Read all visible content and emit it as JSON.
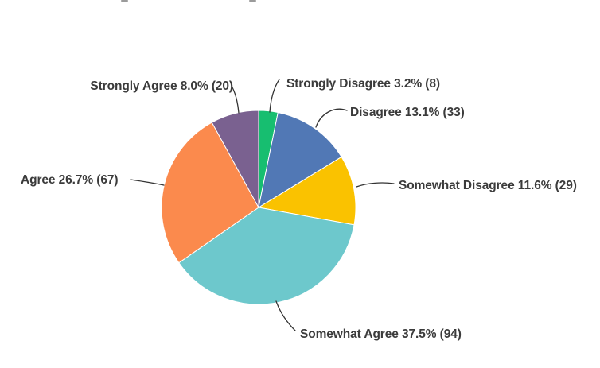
{
  "chart_data": {
    "type": "pie",
    "title": "",
    "direction": "clockwise",
    "start_angle": "12-oclock",
    "label_style": "callout-with-leader-lines",
    "legend_position": "none",
    "background": "#ffffff",
    "label_color": "#3b3b3b",
    "leader_line_color": "#333333",
    "slice_separator_color": "#ffffff",
    "categories": [
      "Strongly Disagree",
      "Disagree",
      "Somewhat Disagree",
      "Somewhat Agree",
      "Agree",
      "Strongly Agree"
    ],
    "values": [
      3.2,
      13.1,
      11.6,
      37.5,
      26.7,
      8.0
    ],
    "counts": [
      8,
      33,
      29,
      94,
      67,
      20
    ],
    "slices": [
      {
        "label": "Strongly Disagree",
        "pct": 3.2,
        "count": 8,
        "color": "#17be70",
        "text": "Strongly Disagree 3.2% (8)"
      },
      {
        "label": "Disagree",
        "pct": 13.1,
        "count": 33,
        "color": "#5178b5",
        "text": "Disagree 13.1% (33)"
      },
      {
        "label": "Somewhat Disagree",
        "pct": 11.6,
        "count": 29,
        "color": "#fac200",
        "text": "Somewhat Disagree 11.6% (29)"
      },
      {
        "label": "Somewhat Agree",
        "pct": 37.5,
        "count": 94,
        "color": "#6dc8cc",
        "text": "Somewhat Agree 37.5% (94)"
      },
      {
        "label": "Agree",
        "pct": 26.7,
        "count": 67,
        "color": "#fb8a4d",
        "text": "Agree 26.7% (67)"
      },
      {
        "label": "Strongly Agree",
        "pct": 8.0,
        "count": 20,
        "color": "#7a6190",
        "text": "Strongly Agree 8.0% (20)"
      }
    ]
  }
}
